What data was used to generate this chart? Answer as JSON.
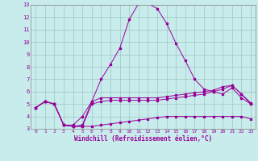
{
  "xlabel": "Windchill (Refroidissement éolien,°C)",
  "bg_color": "#c8ecec",
  "line_color": "#990099",
  "grid_color": "#b0d0d0",
  "xlim": [
    -0.5,
    23.5
  ],
  "ylim": [
    3,
    13
  ],
  "yticks": [
    3,
    4,
    5,
    6,
    7,
    8,
    9,
    10,
    11,
    12,
    13
  ],
  "xticks": [
    0,
    1,
    2,
    3,
    4,
    5,
    6,
    7,
    8,
    9,
    10,
    11,
    12,
    13,
    14,
    15,
    16,
    17,
    18,
    19,
    20,
    21,
    22,
    23
  ],
  "curves": [
    {
      "x": [
        0,
        1,
        2,
        3,
        4,
        5,
        6,
        7,
        8,
        9,
        10,
        11,
        12,
        13,
        14,
        15,
        16,
        17,
        18,
        19,
        20,
        21,
        22,
        23
      ],
      "y": [
        4.7,
        5.2,
        5.0,
        3.3,
        3.2,
        3.3,
        5.2,
        7.0,
        8.2,
        9.5,
        11.8,
        13.1,
        13.1,
        12.7,
        11.5,
        9.9,
        8.5,
        7.0,
        6.2,
        6.0,
        5.8,
        6.3,
        5.5,
        5.0
      ]
    },
    {
      "x": [
        0,
        1,
        2,
        3,
        4,
        5,
        6,
        7,
        8,
        9,
        10,
        11,
        12,
        13,
        14,
        15,
        16,
        17,
        18,
        19,
        20,
        21,
        22,
        23
      ],
      "y": [
        4.7,
        5.2,
        5.0,
        3.3,
        3.3,
        4.0,
        5.2,
        5.5,
        5.5,
        5.5,
        5.5,
        5.5,
        5.5,
        5.5,
        5.6,
        5.7,
        5.8,
        5.9,
        6.0,
        6.1,
        6.4,
        6.5,
        5.8,
        5.0
      ]
    },
    {
      "x": [
        0,
        1,
        2,
        3,
        4,
        5,
        6,
        7,
        8,
        9,
        10,
        11,
        12,
        13,
        14,
        15,
        16,
        17,
        18,
        19,
        20,
        21,
        22,
        23
      ],
      "y": [
        4.7,
        5.2,
        5.0,
        3.3,
        3.2,
        3.2,
        5.0,
        5.2,
        5.3,
        5.3,
        5.3,
        5.3,
        5.3,
        5.3,
        5.4,
        5.5,
        5.6,
        5.7,
        5.8,
        6.0,
        6.2,
        6.5,
        5.8,
        5.1
      ]
    },
    {
      "x": [
        0,
        1,
        2,
        3,
        4,
        5,
        6,
        7,
        8,
        9,
        10,
        11,
        12,
        13,
        14,
        15,
        16,
        17,
        18,
        19,
        20,
        21,
        22,
        23
      ],
      "y": [
        4.7,
        5.2,
        5.0,
        3.3,
        3.2,
        3.2,
        3.2,
        3.3,
        3.4,
        3.5,
        3.6,
        3.7,
        3.8,
        3.9,
        4.0,
        4.0,
        4.0,
        4.0,
        4.0,
        4.0,
        4.0,
        4.0,
        4.0,
        3.8
      ]
    }
  ]
}
